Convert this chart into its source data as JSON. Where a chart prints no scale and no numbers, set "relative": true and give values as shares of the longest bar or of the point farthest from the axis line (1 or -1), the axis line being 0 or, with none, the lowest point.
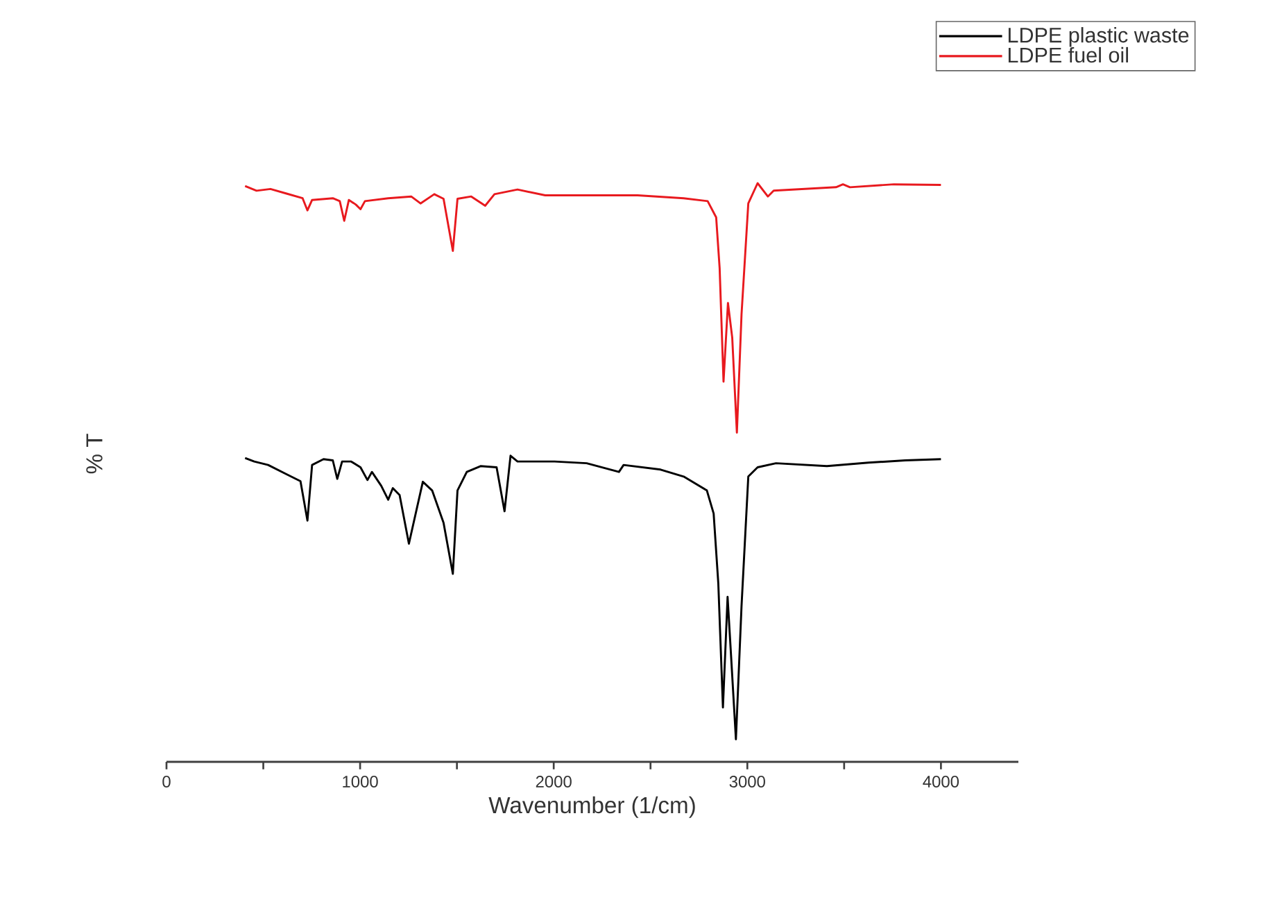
{
  "chart_data": {
    "type": "line",
    "relative": true,
    "xlabel": "Wavenumber (1/cm)",
    "ylabel": "% T",
    "xlim": [
      0,
      4400
    ],
    "xticks": [
      0,
      {
        "value": 500,
        "label": null
      },
      1000,
      {
        "value": 1500,
        "label": null
      },
      2000,
      {
        "value": 2500,
        "label": null
      },
      3000,
      {
        "value": 3500,
        "label": null
      },
      4000
    ],
    "legend": "top right",
    "series": [
      {
        "name": "LDPE plastic waste",
        "color": "#000000",
        "x": [
          406,
          453,
          525,
          620,
          692,
          728,
          752,
          811,
          859,
          882,
          907,
          954,
          1002,
          1038,
          1061,
          1109,
          1145,
          1169,
          1204,
          1252,
          1324,
          1372,
          1431,
          1479,
          1503,
          1551,
          1622,
          1705,
          1746,
          1777,
          1813,
          2004,
          2170,
          2337,
          2361,
          2552,
          2671,
          2791,
          2826,
          2850,
          2874,
          2898,
          2915,
          2941,
          2970,
          3005,
          3053,
          3148,
          3411,
          3626,
          3816,
          4000
        ],
        "values": [
          0.525,
          0.519,
          0.513,
          0.497,
          0.485,
          0.417,
          0.513,
          0.523,
          0.521,
          0.489,
          0.519,
          0.519,
          0.509,
          0.487,
          0.501,
          0.477,
          0.453,
          0.473,
          0.461,
          0.377,
          0.484,
          0.469,
          0.413,
          0.325,
          0.469,
          0.501,
          0.511,
          0.509,
          0.433,
          0.529,
          0.519,
          0.519,
          0.516,
          0.501,
          0.513,
          0.505,
          0.493,
          0.469,
          0.429,
          0.309,
          0.094,
          0.285,
          0.189,
          0.039,
          0.269,
          0.493,
          0.509,
          0.516,
          0.511,
          0.517,
          0.521,
          0.523
        ]
      },
      {
        "name": "LDPE fuel oil",
        "color": "#e8191e",
        "x": [
          406,
          465,
          537,
          620,
          703,
          728,
          752,
          859,
          895,
          918,
          942,
          978,
          1002,
          1025,
          1145,
          1264,
          1312,
          1383,
          1431,
          1479,
          1503,
          1574,
          1646,
          1694,
          1813,
          1956,
          2195,
          2433,
          2671,
          2795,
          2839,
          2857,
          2877,
          2900,
          2922,
          2946,
          2970,
          3005,
          3053,
          3106,
          3136,
          3458,
          3494,
          3530,
          3757,
          4000
        ],
        "values": [
          0.995,
          0.987,
          0.99,
          0.982,
          0.974,
          0.953,
          0.971,
          0.974,
          0.969,
          0.935,
          0.971,
          0.963,
          0.955,
          0.969,
          0.974,
          0.977,
          0.965,
          0.981,
          0.973,
          0.883,
          0.973,
          0.977,
          0.961,
          0.981,
          0.989,
          0.979,
          0.979,
          0.979,
          0.974,
          0.969,
          0.941,
          0.853,
          0.657,
          0.793,
          0.733,
          0.569,
          0.773,
          0.965,
          1,
          0.977,
          0.987,
          0.993,
          0.998,
          0.993,
          0.998,
          0.997
        ]
      }
    ]
  }
}
